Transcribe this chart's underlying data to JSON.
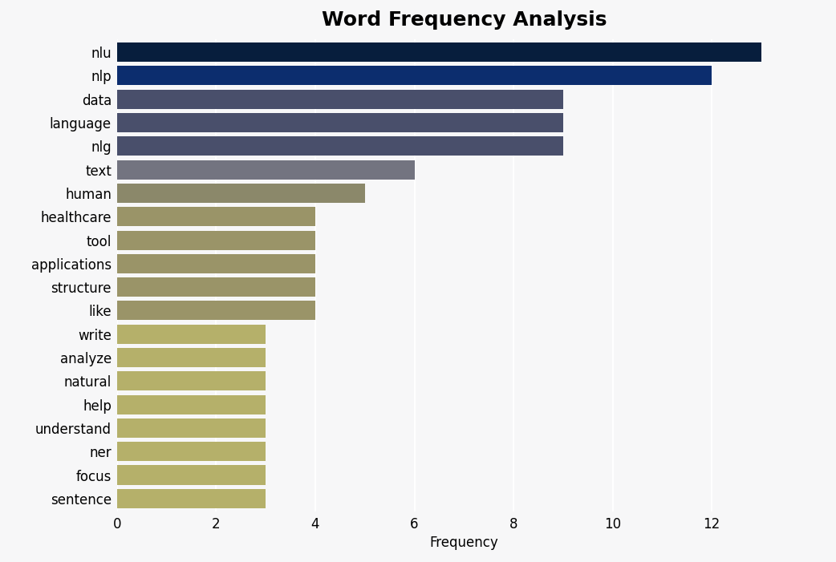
{
  "title": "Word Frequency Analysis",
  "xlabel": "Frequency",
  "categories": [
    "nlu",
    "nlp",
    "data",
    "language",
    "nlg",
    "text",
    "human",
    "healthcare",
    "tool",
    "applications",
    "structure",
    "like",
    "write",
    "analyze",
    "natural",
    "help",
    "understand",
    "ner",
    "focus",
    "sentence"
  ],
  "values": [
    13,
    12,
    9,
    9,
    9,
    6,
    5,
    4,
    4,
    4,
    4,
    4,
    3,
    3,
    3,
    3,
    3,
    3,
    3,
    3
  ],
  "bar_colors": [
    "#071e3d",
    "#0c2d6e",
    "#494f6b",
    "#494f6b",
    "#494f6b",
    "#737480",
    "#8b886a",
    "#9a9468",
    "#9a9468",
    "#9a9468",
    "#9a9468",
    "#9a9468",
    "#b5b06a",
    "#b5b06a",
    "#b5b06a",
    "#b5b06a",
    "#b5b06a",
    "#b5b06a",
    "#b5b06a",
    "#b5b06a"
  ],
  "xlim": [
    0,
    14
  ],
  "xticks": [
    0,
    2,
    4,
    6,
    8,
    10,
    12
  ],
  "background_color": "#f7f7f8",
  "plot_bg_color": "#f7f7f8",
  "title_fontsize": 18,
  "axis_fontsize": 12,
  "bar_height": 0.82,
  "grid_color": "#ffffff",
  "grid_linewidth": 1.5
}
